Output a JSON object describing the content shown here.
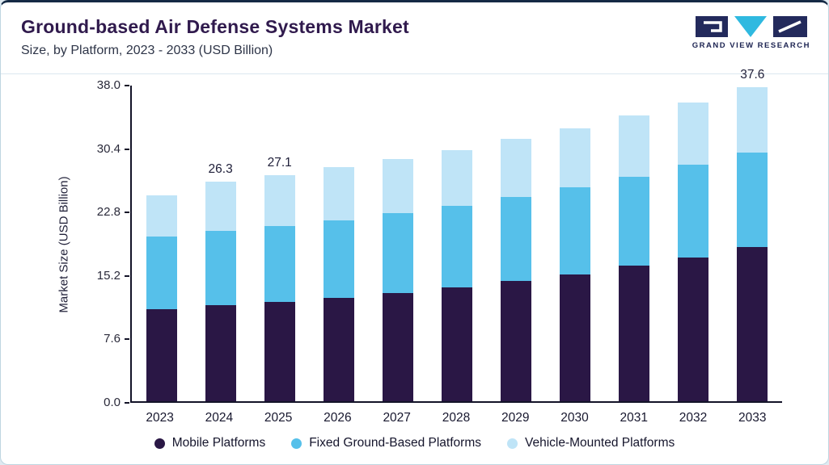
{
  "header": {
    "title": "Ground-based Air Defense Systems Market",
    "subtitle": "Size, by Platform, 2023 - 2033 (USD Billion)",
    "logo_text": "GRAND VIEW RESEARCH"
  },
  "colors": {
    "title": "#301a4d",
    "accent_top": "#152a45",
    "logo_navy": "#232a5c",
    "logo_teal": "#2fb9e0",
    "mobile": "#2a1745",
    "fixed": "#56c0ea",
    "vehicle": "#bfe4f7"
  },
  "chart_data": {
    "type": "bar",
    "stacked": true,
    "title": "Ground-based Air Defense Systems Market Size, by Platform, 2023 - 2033 (USD Billion)",
    "xlabel": "",
    "ylabel": "Market Size (USD Billion)",
    "ylim": [
      0,
      38.0
    ],
    "yticks": [
      0.0,
      7.6,
      15.2,
      22.8,
      30.4,
      38.0
    ],
    "grid": false,
    "legend_position": "bottom",
    "categories": [
      "2023",
      "2024",
      "2025",
      "2026",
      "2027",
      "2028",
      "2029",
      "2030",
      "2031",
      "2032",
      "2033"
    ],
    "series": [
      {
        "name": "Mobile Platforms",
        "key": "mobile-platforms",
        "color": "#2a1745",
        "values": [
          11.0,
          11.5,
          11.9,
          12.4,
          13.0,
          13.6,
          14.4,
          15.2,
          16.2,
          17.2,
          18.5
        ]
      },
      {
        "name": "Fixed Ground-Based Platforms",
        "key": "fixed-ground-based-platforms",
        "color": "#56c0ea",
        "values": [
          8.7,
          8.9,
          9.1,
          9.3,
          9.5,
          9.8,
          10.1,
          10.4,
          10.7,
          11.1,
          11.3
        ]
      },
      {
        "name": "Vehicle-Mounted Platforms",
        "key": "vehicle-mounted-platforms",
        "color": "#bfe4f7",
        "values": [
          5.0,
          5.9,
          6.1,
          6.3,
          6.5,
          6.7,
          6.9,
          7.1,
          7.3,
          7.5,
          7.8
        ]
      }
    ],
    "totals": [
      24.7,
      26.3,
      27.1,
      28.0,
      29.0,
      30.1,
      31.4,
      32.7,
      34.2,
      35.8,
      37.6
    ],
    "bar_labels": {
      "2024": "26.3",
      "2025": "27.1",
      "2033": "37.6"
    }
  }
}
